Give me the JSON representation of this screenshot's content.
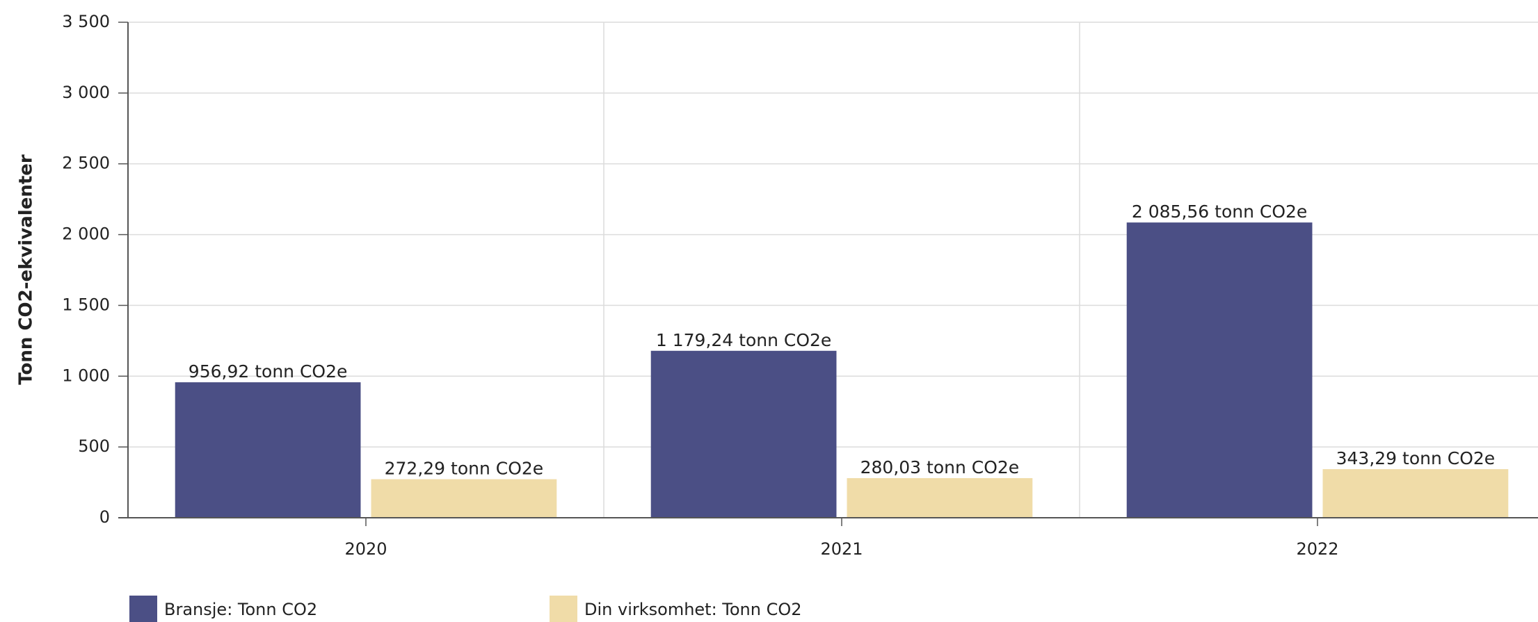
{
  "chart_data": {
    "type": "bar",
    "y_label": "Tonn CO2-ekvivalenter",
    "categories": [
      "2020",
      "2021",
      "2022"
    ],
    "series": [
      {
        "name": "Bransje: Tonn CO2",
        "color": "#4b4f85",
        "values": [
          956.92,
          1179.24,
          2085.56
        ],
        "value_labels": [
          "956,92 tonn CO2e",
          "1 179,24 tonn CO2e",
          "2 085,56 tonn CO2e"
        ]
      },
      {
        "name": "Din virksomhet: Tonn CO2",
        "color": "#f0dca8",
        "values": [
          272.29,
          280.03,
          343.29
        ],
        "value_labels": [
          "272,29 tonn CO2e",
          "280,03 tonn CO2e",
          "343,29 tonn CO2e"
        ]
      }
    ],
    "ylim": [
      0,
      3500
    ],
    "yticks": [
      0,
      500,
      {
        "value": 1000,
        "label": "1 000"
      },
      {
        "value": 1500,
        "label": "1 500"
      },
      {
        "value": 2000,
        "label": "2 000"
      },
      {
        "value": 2500,
        "label": "2 500"
      },
      {
        "value": 3000,
        "label": "3 000"
      },
      {
        "value": 3500,
        "label": "3 500"
      }
    ],
    "grid": true,
    "legend": "bottom"
  }
}
